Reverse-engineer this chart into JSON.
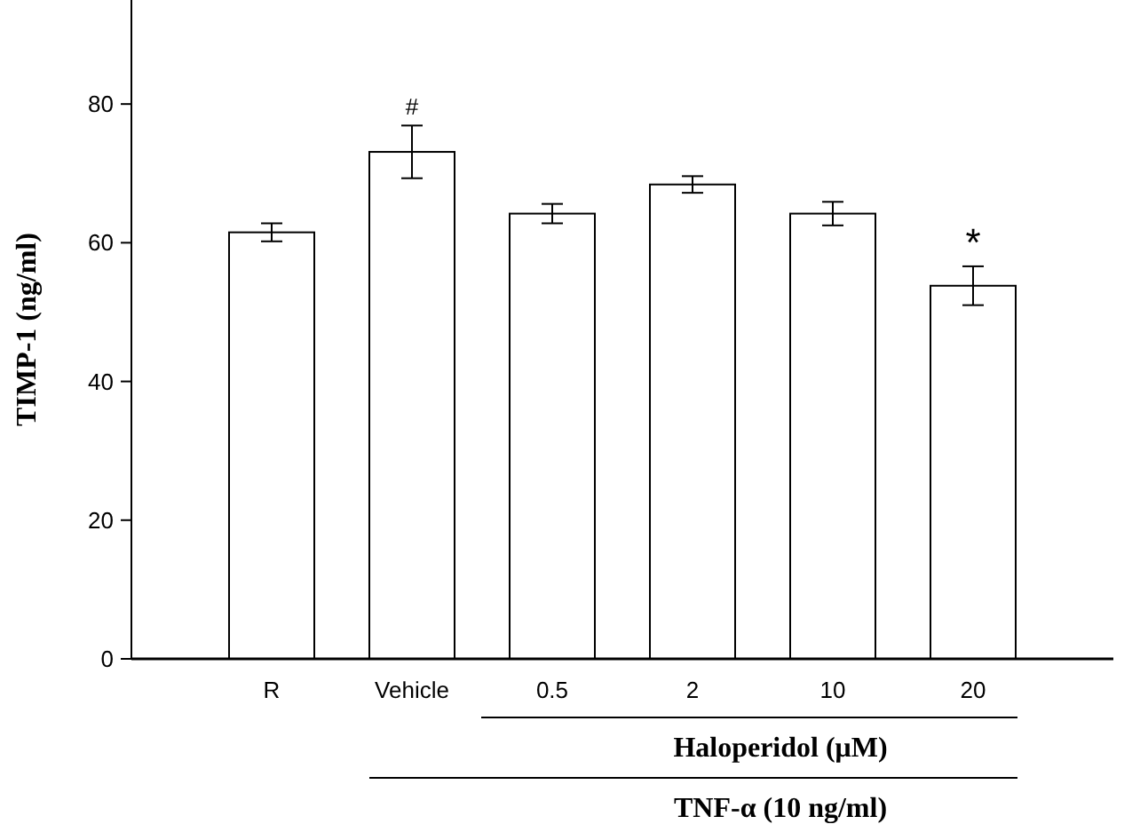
{
  "chart_data": {
    "type": "bar",
    "ylabel": "TIMP-1 (ng/ml)",
    "categories": [
      "R",
      "Vehicle",
      "0.5",
      "2",
      "10",
      "20"
    ],
    "values": [
      61.5,
      73.1,
      64.2,
      68.4,
      64.2,
      53.8
    ],
    "errors": [
      1.3,
      3.8,
      1.4,
      1.2,
      1.7,
      2.8
    ],
    "color": "#ffffff",
    "ylim": [
      0,
      95
    ],
    "yticks": [
      0,
      20,
      40,
      60,
      80
    ],
    "grid": false,
    "annotations": [
      {
        "text": "#",
        "x": "Vehicle",
        "y": 76.9
      },
      {
        "text": "*",
        "x": "20",
        "y": 56.6
      },
      "Haloperidol (μM)",
      "TNF-α (10 ng/ml)"
    ]
  }
}
